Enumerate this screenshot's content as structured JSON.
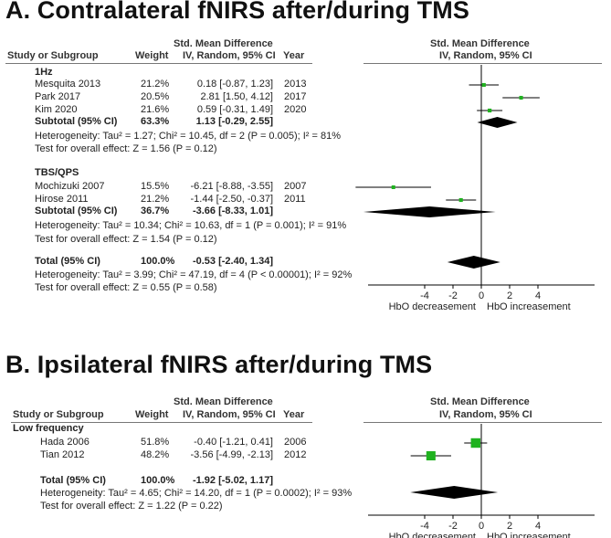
{
  "headers": {
    "study": "Study or Subgroup",
    "weight": "Weight",
    "smd_line1": "Std. Mean Difference",
    "smd_line2": "IV, Random, 95% CI",
    "year": "Year",
    "plot_line1": "Std. Mean Difference",
    "plot_line2": "IV, Random, 95% CI"
  },
  "colors": {
    "marker": "#1fb21f",
    "diamond": "#000000",
    "line": "#000000"
  },
  "chart_data": [
    {
      "type": "forest",
      "title": "A. Contralateral fNIRS after/during TMS",
      "x_axis": {
        "range": [
          -8,
          8
        ],
        "ticks": [
          -4,
          -2,
          0,
          2,
          4
        ],
        "left_label": "HbO decreasement",
        "right_label": "HbO increasement"
      },
      "groups": [
        {
          "name": "1Hz",
          "studies": [
            {
              "study": "Mesquita 2013",
              "weight": "21.2%",
              "ci_text": "0.18 [-0.87, 1.23]",
              "year": "2013",
              "smd": 0.18,
              "lo": -0.87,
              "hi": 1.23
            },
            {
              "study": "Park 2017",
              "weight": "20.5%",
              "ci_text": "2.81 [1.50, 4.12]",
              "year": "2017",
              "smd": 2.81,
              "lo": 1.5,
              "hi": 4.12
            },
            {
              "study": "Kim 2020",
              "weight": "21.6%",
              "ci_text": "0.59 [-0.31, 1.49]",
              "year": "2020",
              "smd": 0.59,
              "lo": -0.31,
              "hi": 1.49
            }
          ],
          "subtotal": {
            "label": "Subtotal (95% CI)",
            "weight": "63.3%",
            "ci_text": "1.13 [-0.29, 2.55]",
            "smd": 1.13,
            "lo": -0.29,
            "hi": 2.55
          },
          "heterogeneity": "Heterogeneity: Tau² = 1.27; Chi² = 10.45, df = 2 (P = 0.005); I² = 81%",
          "overall_effect": "Test for overall effect: Z = 1.56 (P = 0.12)"
        },
        {
          "name": "TBS/QPS",
          "studies": [
            {
              "study": "Mochizuki 2007",
              "weight": "15.5%",
              "ci_text": "-6.21 [-8.88, -3.55]",
              "year": "2007",
              "smd": -6.21,
              "lo": -8.88,
              "hi": -3.55
            },
            {
              "study": "Hirose 2011",
              "weight": "21.2%",
              "ci_text": "-1.44 [-2.50, -0.37]",
              "year": "2011",
              "smd": -1.44,
              "lo": -2.5,
              "hi": -0.37
            }
          ],
          "subtotal": {
            "label": "Subtotal (95% CI)",
            "weight": "36.7%",
            "ci_text": "-3.66 [-8.33, 1.01]",
            "smd": -3.66,
            "lo": -8.33,
            "hi": 1.01
          },
          "heterogeneity": "Heterogeneity: Tau² = 10.34; Chi² = 10.63, df = 1 (P = 0.001); I² = 91%",
          "overall_effect": "Test for overall effect: Z = 1.54 (P = 0.12)"
        }
      ],
      "total": {
        "label": "Total (95% CI)",
        "weight": "100.0%",
        "ci_text": "-0.53 [-2.40, 1.34]",
        "smd": -0.53,
        "lo": -2.4,
        "hi": 1.34,
        "heterogeneity": "Heterogeneity: Tau² = 3.99; Chi² = 47.19, df = 4 (P < 0.00001); I² = 92%",
        "overall_effect": "Test for overall effect: Z = 0.55 (P = 0.58)"
      }
    },
    {
      "type": "forest",
      "title": "B. Ipsilateral fNIRS after/during TMS",
      "x_axis": {
        "range": [
          -8,
          8
        ],
        "ticks": [
          -4,
          -2,
          0,
          2,
          4
        ],
        "left_label": "HbO decreasement",
        "right_label": "HbO increasement"
      },
      "groups": [
        {
          "name": "Low frequency",
          "studies": [
            {
              "study": "Hada 2006",
              "weight": "51.8%",
              "ci_text": "-0.40 [-1.21, 0.41]",
              "year": "2006",
              "smd": -0.4,
              "lo": -1.21,
              "hi": 0.41
            },
            {
              "study": "Tian 2012",
              "weight": "48.2%",
              "ci_text": "-3.56 [-4.99, -2.13]",
              "year": "2012",
              "smd": -3.56,
              "lo": -4.99,
              "hi": -2.13
            }
          ]
        }
      ],
      "total": {
        "label": "Total (95% CI)",
        "weight": "100.0%",
        "ci_text": "-1.92 [-5.02, 1.17]",
        "smd": -1.92,
        "lo": -5.02,
        "hi": 1.17,
        "heterogeneity": "Heterogeneity: Tau² = 4.65; Chi² = 14.20, df = 1 (P = 0.0002); I² = 93%",
        "overall_effect": "Test for overall effect: Z = 1.22 (P = 0.22)"
      }
    }
  ]
}
